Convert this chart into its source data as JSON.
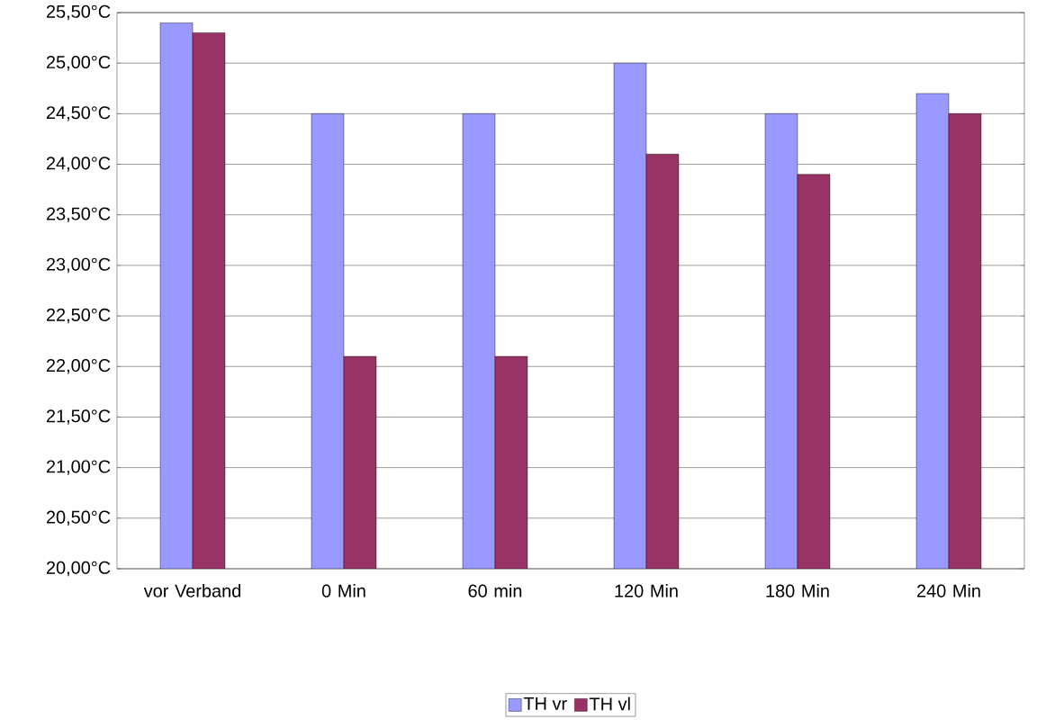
{
  "chart_data": {
    "type": "bar",
    "categories": [
      "vor Verband",
      "0 Min",
      "60 min",
      "120 Min",
      "180 Min",
      "240 Min"
    ],
    "series": [
      {
        "name": "TH vr",
        "color": "#9999ff",
        "values": [
          25.4,
          24.5,
          24.5,
          25.0,
          24.5,
          24.7
        ]
      },
      {
        "name": "TH vl",
        "color": "#993366",
        "values": [
          25.3,
          22.1,
          22.1,
          24.1,
          23.9,
          24.5
        ]
      }
    ],
    "ylim": [
      20,
      25.5
    ],
    "yticks": [
      {
        "value": 20,
        "label": "20,00°C"
      },
      {
        "value": 20.5,
        "label": "20,50°C"
      },
      {
        "value": 21,
        "label": "21,00°C"
      },
      {
        "value": 21.5,
        "label": "21,50°C"
      },
      {
        "value": 22,
        "label": "22,00°C"
      },
      {
        "value": 22.5,
        "label": "22,50°C"
      },
      {
        "value": 23,
        "label": "23,00°C"
      },
      {
        "value": 23.5,
        "label": "23,50°C"
      },
      {
        "value": 24,
        "label": "24,00°C"
      },
      {
        "value": 24.5,
        "label": "24,50°C"
      },
      {
        "value": 25,
        "label": "25,00°C"
      },
      {
        "value": 25.5,
        "label": "25,50°C"
      }
    ],
    "grid": "y",
    "legend": "bottom"
  }
}
